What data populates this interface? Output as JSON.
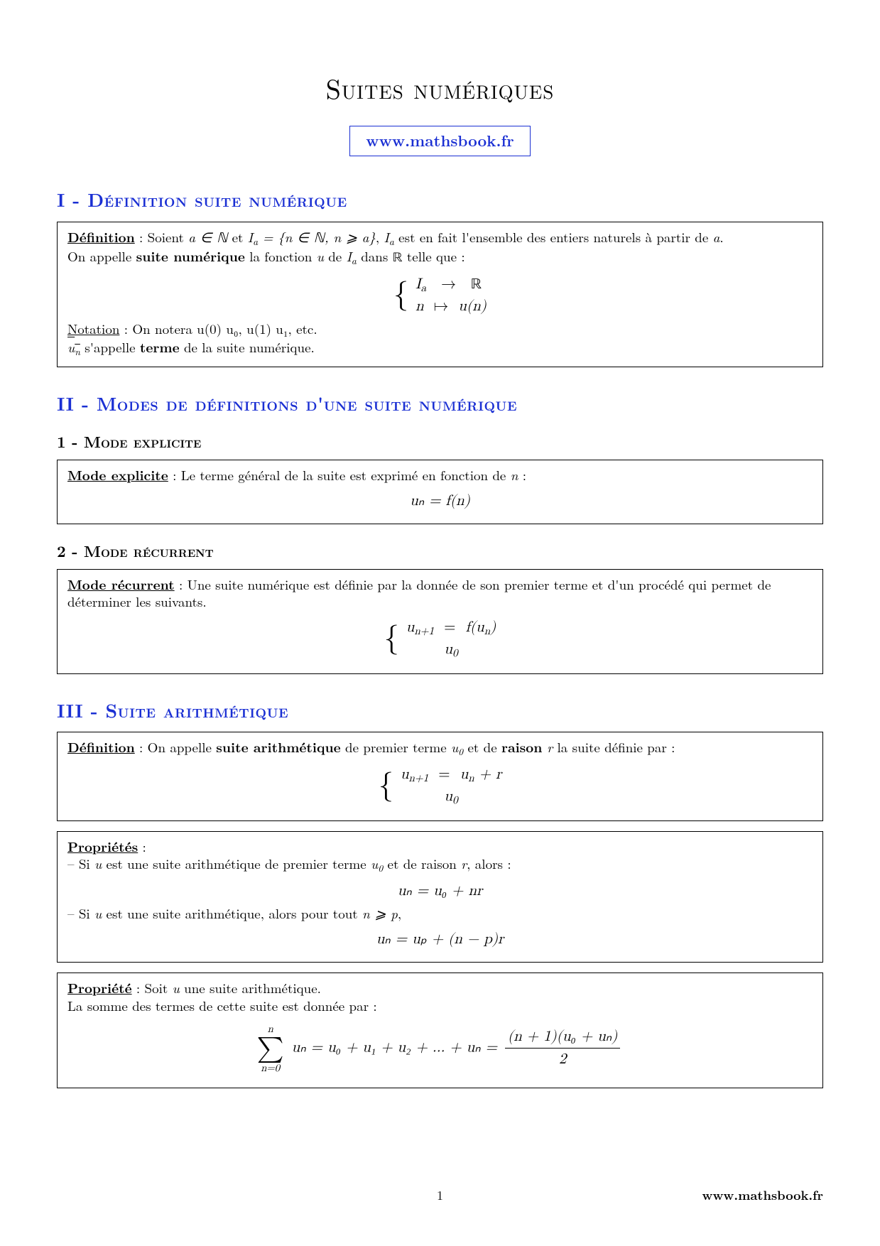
{
  "colors": {
    "accent": "#1a2fd3",
    "text": "#000000",
    "bg": "#ffffff",
    "rule": "#888888"
  },
  "typography": {
    "title_fontsize": 38,
    "body_fontsize": 20,
    "section_fontsize": 26,
    "subsection_fontsize": 22,
    "math_fontsize": 21,
    "font_family": "CMU Serif / Computer Modern"
  },
  "title": "Suites numériques",
  "site": "www.mathsbook.fr",
  "s1": {
    "heading": "I - Définition suite numérique",
    "def_label": "Définition",
    "def_text_a": " : Soient ",
    "def_math1": "a ∈ ℕ",
    "def_text_b": " et ",
    "def_math2": "I",
    "def_math2_sub": "a",
    "def_math2_rest": " = {n ∈ ℕ, n ⩾ a}",
    "def_text_c": ", ",
    "def_math3": "I",
    "def_math3_sub": "a",
    "def_text_d": " est en fait l'ensemble des entiers naturels à partir de ",
    "def_math4": "a",
    "def_text_e": ".",
    "def_line2_a": "On appelle ",
    "def_line2_bold": "suite numérique",
    "def_line2_b": " la fonction ",
    "def_line2_m1": "u",
    "def_line2_c": " de ",
    "def_line2_m2": "I",
    "def_line2_m2_sub": "a",
    "def_line2_d": " dans ",
    "def_line2_m3": "ℝ",
    "def_line2_e": " telle que :",
    "map_row1_l": "I",
    "map_row1_l_sub": "a",
    "map_row1_op": "→",
    "map_row1_r": "ℝ",
    "map_row2_l": "n",
    "map_row2_op": "↦",
    "map_row2_r": "u(n)",
    "not_label": "Notation",
    "not_text": " : On notera u(0) u₀, u(1) u₁, etc.",
    "not_line2_m": "u",
    "not_line2_sub": "n",
    "not_line2_a": " s'appelle ",
    "not_line2_bold": "terme",
    "not_line2_b": " de la suite numérique."
  },
  "s2": {
    "heading": "II - Modes de définitions d'une suite numérique",
    "sub1": "1 - Mode explicite",
    "box1_label": "Mode explicite",
    "box1_text": " : Le terme général de la suite est exprimé en fonction de ",
    "box1_m": "n",
    "box1_end": " :",
    "box1_eq": "uₙ = f(n)",
    "sub2": "2 - Mode récurrent",
    "box2_label": "Mode récurrent",
    "box2_text": " : Une suite numérique est définie par la donnée de son premier terme et d'un procédé qui permet de déterminer les suivants.",
    "box2_r1_l": "u",
    "box2_r1_l_sub": "n+1",
    "box2_r1_op": "=",
    "box2_r1_r": "f(u",
    "box2_r1_r_sub": "n",
    "box2_r1_r_end": ")",
    "box2_r2": "u",
    "box2_r2_sub": "0"
  },
  "s3": {
    "heading": "III - Suite arithmétique",
    "def_label": "Définition",
    "def_text_a": " : On appelle ",
    "def_bold": "suite arithmétique",
    "def_text_b": " de premier terme ",
    "def_m1": "u",
    "def_m1_sub": "0",
    "def_text_c": " et de ",
    "def_bold2": "raison",
    "def_m2": " r",
    "def_text_d": " la suite définie par :",
    "r1_l": "u",
    "r1_l_sub": "n+1",
    "r1_op": "=",
    "r1_r": "u",
    "r1_r_sub": "n",
    "r1_r_plus": " + r",
    "r2": "u",
    "r2_sub": "0",
    "p_label": "Propriétés",
    "p_colon": " :",
    "p1_dash": "– Si ",
    "p1_m1": "u",
    "p1_a": " est une suite arithmétique de premier terme ",
    "p1_m2": "u",
    "p1_m2_sub": "0",
    "p1_b": " et de raison ",
    "p1_m3": "r",
    "p1_c": ", alors :",
    "p1_eq": "uₙ = u₀ + nr",
    "p2_dash": "– Si ",
    "p2_m1": "u",
    "p2_a": " est une suite arithmétique, alors pour tout ",
    "p2_m2": "n ⩾ p",
    "p2_b": ",",
    "p2_eq": "uₙ = uₚ + (n − p)r",
    "prop2_label": "Propriété",
    "prop2_text_a": " : Soit ",
    "prop2_m1": "u",
    "prop2_text_b": " une suite arithmétique.",
    "prop2_line2": "La somme des termes de cette suite est donnée par :",
    "sum_top": "n",
    "sum_bot": "n=0",
    "sum_body": "uₙ = u₀ + u₁ + u₂ + ... + uₙ = ",
    "frac_num": "(n + 1)(u₀ + uₙ)",
    "frac_den": "2"
  },
  "footer": {
    "page": "1",
    "site": "www.mathsbook.fr"
  }
}
